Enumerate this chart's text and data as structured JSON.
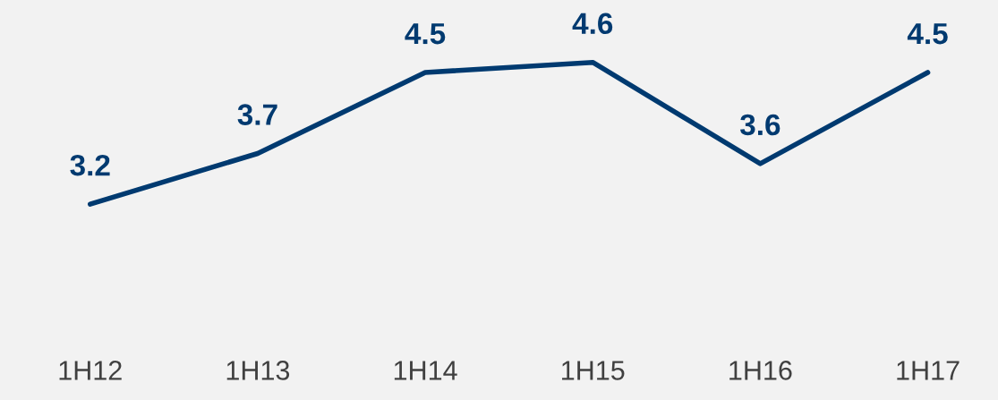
{
  "chart_data": {
    "type": "line",
    "categories": [
      "1H12",
      "1H13",
      "1H14",
      "1H15",
      "1H16",
      "1H17"
    ],
    "series": [
      {
        "color": "#003a70",
        "values": [
          3.2,
          3.7,
          4.5,
          4.6,
          3.6,
          4.5
        ]
      }
    ],
    "tick_labels": "x",
    "data_labels": true,
    "grid": false,
    "legend": false,
    "marker": "none",
    "line_style": "solid"
  }
}
